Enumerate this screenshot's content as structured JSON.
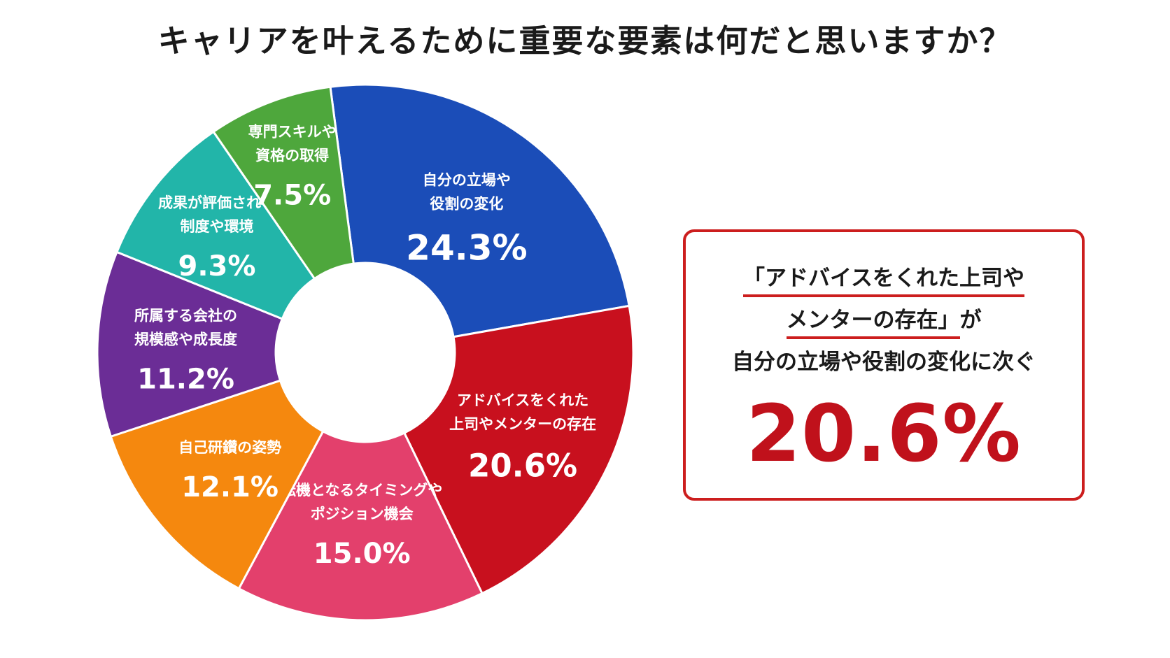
{
  "title": "キャリアを叶えるために重要な要素は何だと思いますか？",
  "chart_data": {
    "type": "pie",
    "style": "donut",
    "slices": [
      {
        "label_lines": [
          "自分の立場や",
          "役割の変化"
        ],
        "value": 24.3,
        "value_label": "24.3%",
        "color": "#1b4db8"
      },
      {
        "label_lines": [
          "アドバイスをくれた",
          "上司やメンターの存在"
        ],
        "value": 20.6,
        "value_label": "20.6%",
        "color": "#c8101e"
      },
      {
        "label_lines": [
          "転機となるタイミングや",
          "ポジション機会"
        ],
        "value": 15.0,
        "value_label": "15.0%",
        "color": "#e3406c"
      },
      {
        "label_lines": [
          "自己研鑽の姿勢"
        ],
        "value": 12.1,
        "value_label": "12.1%",
        "color": "#f5880e"
      },
      {
        "label_lines": [
          "所属する会社の",
          "規模感や成長度"
        ],
        "value": 11.2,
        "value_label": "11.2%",
        "color": "#6b2d96"
      },
      {
        "label_lines": [
          "成果が評価される",
          "制度や環境"
        ],
        "value": 9.3,
        "value_label": "9.3%",
        "color": "#22b5a9"
      },
      {
        "label_lines": [
          "専門スキルや",
          "資格の取得"
        ],
        "value": 7.5,
        "value_label": "7.5%",
        "color": "#4ea73c"
      }
    ]
  },
  "callout": {
    "line1": "「アドバイスをくれた上司や",
    "line2_highlight": "メンターの存在」",
    "line2_suffix": "が",
    "line3": "自分の立場や役割の変化に次ぐ",
    "value": "20.6%",
    "border_color": "#cc1e1e",
    "value_color": "#c0111b"
  }
}
